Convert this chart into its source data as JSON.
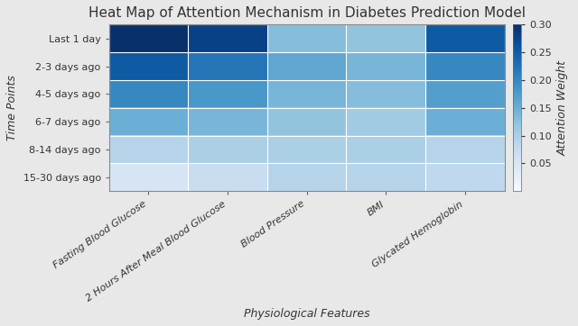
{
  "title": "Heat Map of Attention Mechanism in Diabetes Prediction Model",
  "xlabel": "Physiological Features",
  "ylabel": "Time Points",
  "colorbar_label": "Attention Weight",
  "y_labels": [
    "Last 1 day",
    "2-3 days ago",
    "4-5 days ago",
    "6-7 days ago",
    "8-14 days ago",
    "15-30 days ago"
  ],
  "x_labels": [
    "Fasting Blood Glucose",
    "2 Hours After Meal Blood Glucose",
    "Blood Pressure",
    "BMI",
    "Glycated Hemoglobin"
  ],
  "data": [
    [
      0.3,
      0.28,
      0.13,
      0.12,
      0.25
    ],
    [
      0.25,
      0.22,
      0.16,
      0.14,
      0.2
    ],
    [
      0.2,
      0.18,
      0.14,
      0.13,
      0.17
    ],
    [
      0.15,
      0.14,
      0.12,
      0.11,
      0.15
    ],
    [
      0.09,
      0.1,
      0.1,
      0.1,
      0.09
    ],
    [
      0.05,
      0.07,
      0.09,
      0.09,
      0.08
    ]
  ],
  "vmin": 0.0,
  "vmax": 0.3,
  "cmap": "Blues",
  "title_fontsize": 11,
  "label_fontsize": 9,
  "tick_fontsize": 8,
  "colorbar_ticks": [
    0.05,
    0.1,
    0.15,
    0.2,
    0.25,
    0.3
  ],
  "background_color": "#e8e8e8",
  "figure_width": 6.4,
  "figure_height": 3.62,
  "dpi": 100
}
